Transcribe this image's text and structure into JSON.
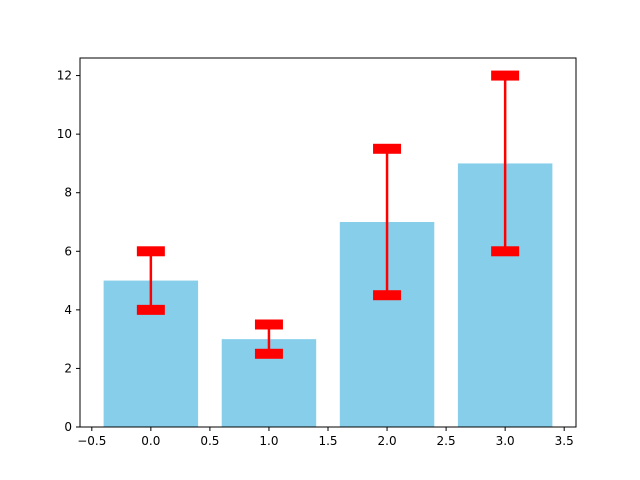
{
  "chart_data": {
    "type": "bar",
    "title": "",
    "xlabel": "",
    "ylabel": "",
    "x": [
      0,
      1,
      2,
      3
    ],
    "values": [
      5,
      3,
      7,
      9
    ],
    "error_low": [
      4,
      2.5,
      4.5,
      6
    ],
    "error_high": [
      6,
      3.5,
      9.5,
      12
    ],
    "bar_width": 0.8,
    "xlim": [
      -0.6,
      3.6
    ],
    "ylim": [
      0,
      12.6
    ],
    "xticks": [
      -0.5,
      0.0,
      0.5,
      1.0,
      1.5,
      2.0,
      2.5,
      3.0,
      3.5
    ],
    "xtick_labels": [
      "−0.5",
      "0.0",
      "0.5",
      "1.0",
      "1.5",
      "2.0",
      "2.5",
      "3.0",
      "3.5"
    ],
    "yticks": [
      0,
      2,
      4,
      6,
      8,
      10,
      12
    ],
    "ytick_labels": [
      "0",
      "2",
      "4",
      "6",
      "8",
      "10",
      "12"
    ],
    "grid": false,
    "bar_color": "#87ceeb",
    "error_color": "#ff0000"
  }
}
